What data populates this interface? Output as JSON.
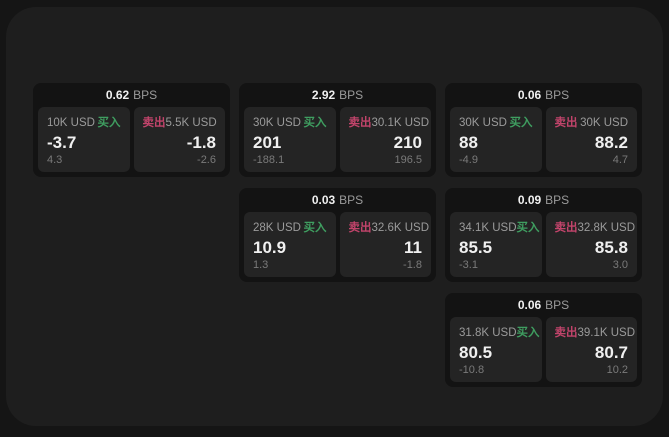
{
  "labels": {
    "bps_unit": "BPS",
    "buy": "买入",
    "sell": "卖出"
  },
  "colors": {
    "buy": "#3f9e60",
    "sell": "#c2446b",
    "surface": "#1e1e1e",
    "card": "#131313",
    "panel": "#242424"
  },
  "cards": [
    {
      "bps": "0.62",
      "buy": {
        "size": "10K USD",
        "price": "-3.7",
        "sub": "4.3"
      },
      "sell": {
        "size": "5.5K USD",
        "price": "-1.8",
        "sub": "-2.6"
      }
    },
    {
      "bps": "2.92",
      "buy": {
        "size": "30K USD",
        "price": "201",
        "sub": "-188.1"
      },
      "sell": {
        "size": "30.1K USD",
        "price": "210",
        "sub": "196.5"
      }
    },
    {
      "bps": "0.06",
      "buy": {
        "size": "30K USD",
        "price": "88",
        "sub": "-4.9"
      },
      "sell": {
        "size": "30K USD",
        "price": "88.2",
        "sub": "4.7"
      }
    },
    {
      "bps": "0.03",
      "buy": {
        "size": "28K USD",
        "price": "10.9",
        "sub": "1.3"
      },
      "sell": {
        "size": "32.6K USD",
        "price": "11",
        "sub": "-1.8"
      }
    },
    {
      "bps": "0.09",
      "buy": {
        "size": "34.1K USD",
        "price": "85.5",
        "sub": "-3.1"
      },
      "sell": {
        "size": "32.8K USD",
        "price": "85.8",
        "sub": "3.0"
      }
    },
    {
      "bps": "0.06",
      "buy": {
        "size": "31.8K USD",
        "price": "80.5",
        "sub": "-10.8"
      },
      "sell": {
        "size": "39.1K USD",
        "price": "80.7",
        "sub": "10.2"
      }
    }
  ]
}
